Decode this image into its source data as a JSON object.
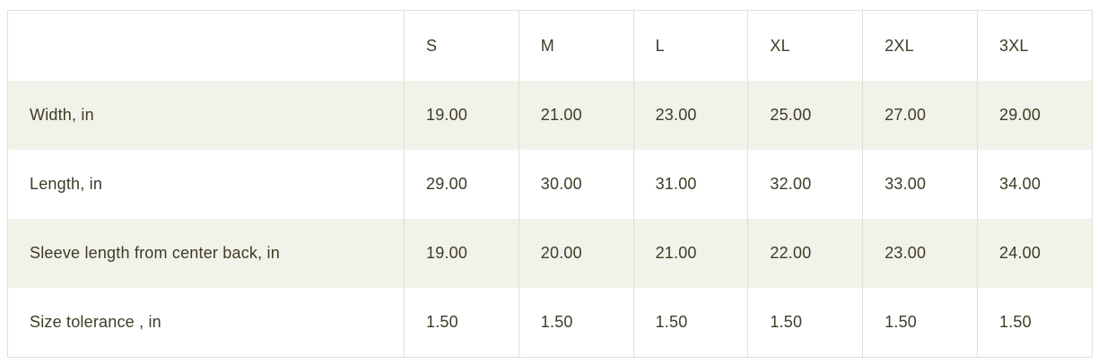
{
  "size_chart": {
    "columns": {
      "label": "",
      "sizes": [
        "S",
        "M",
        "L",
        "XL",
        "2XL",
        "3XL"
      ]
    },
    "rows": [
      {
        "label": "Width, in",
        "values": [
          "19.00",
          "21.00",
          "23.00",
          "25.00",
          "27.00",
          "29.00"
        ]
      },
      {
        "label": "Length, in",
        "values": [
          "29.00",
          "30.00",
          "31.00",
          "32.00",
          "33.00",
          "34.00"
        ]
      },
      {
        "label": "Sleeve length from center back, in",
        "values": [
          "19.00",
          "20.00",
          "21.00",
          "22.00",
          "23.00",
          "24.00"
        ]
      },
      {
        "label": "Size tolerance , in",
        "values": [
          "1.50",
          "1.50",
          "1.50",
          "1.50",
          "1.50",
          "1.50"
        ]
      }
    ],
    "colors": {
      "stripe_background": "#f2f2ea",
      "row_background": "#ffffff",
      "border": "#dedfd5",
      "text": "#3c3c26"
    },
    "unit": "in"
  }
}
